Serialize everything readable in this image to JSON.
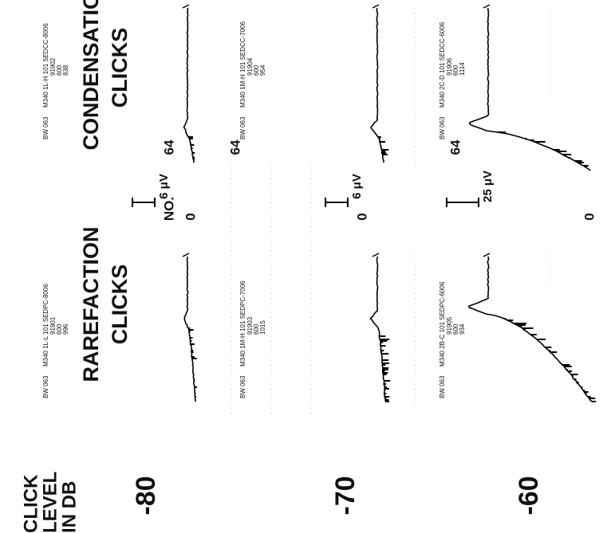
{
  "axis_title": [
    "CLICK",
    "LEVEL",
    "IN DB"
  ],
  "no_label": "NO.",
  "columns": {
    "rarefaction": [
      "RAREFACTION",
      "CLICKS"
    ],
    "condensation": [
      "CONDENSATION",
      "CLICKS"
    ]
  },
  "rows": [
    {
      "level": "-80",
      "no": "64",
      "zero": "0",
      "scale": "6 μV",
      "rarefaction_id": [
        "BW 063",
        "M340 1L-L 101 SEDPC-8006",
        "91901",
        "600",
        "996"
      ],
      "condensation_id": [
        "BW 063",
        "M340 1L-H 101 SEDCC-8006",
        "91902",
        "600",
        "838"
      ]
    },
    {
      "level": "-70",
      "no": "64",
      "zero": "0",
      "scale": "6 μV",
      "rarefaction_id": [
        "BW 063",
        "M340 1M-H 101 SEDPC-7006",
        "91903",
        "600",
        "1015"
      ],
      "condensation_id": [
        "BW 063",
        "M340 1M-H 101 SEDCC-7006",
        "91904",
        "600",
        "954"
      ]
    },
    {
      "level": "-60",
      "no": "64",
      "zero": "0",
      "scale": "25 μV",
      "rarefaction_id": [
        "BW 063",
        "M340 2B-C 101 SEDPC-6006",
        "91905",
        "600",
        "934"
      ],
      "condensation_id": [
        "BW 063",
        "M340 2C-D 101 SEDCC-6006",
        "91906",
        "600",
        "1114"
      ]
    }
  ]
}
